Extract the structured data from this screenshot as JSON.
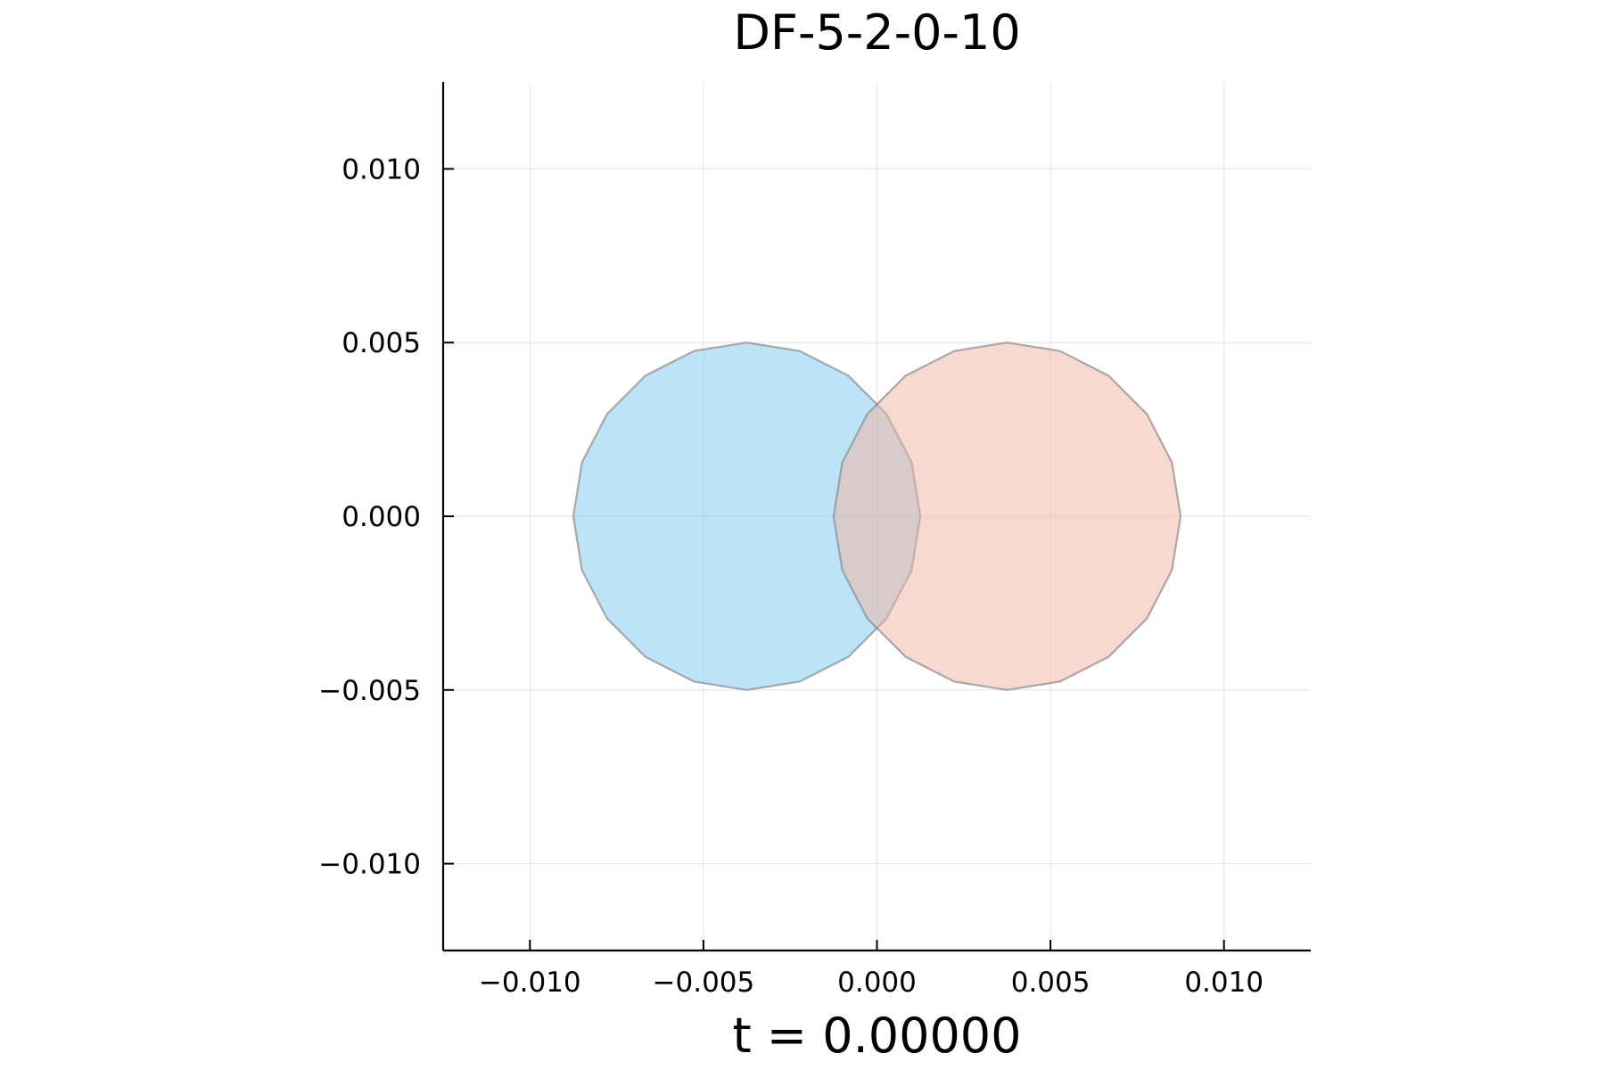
{
  "chart_data": {
    "type": "area",
    "title": "DF-5-2-0-10",
    "xlabel": "t = 0.00000",
    "ylabel": "",
    "xlim": [
      -0.0125,
      0.0125
    ],
    "ylim": [
      -0.0125,
      0.0125
    ],
    "x_ticks": [
      -0.01,
      -0.005,
      0.0,
      0.005,
      0.01
    ],
    "y_ticks": [
      -0.01,
      -0.005,
      0.0,
      0.005,
      0.01
    ],
    "x_tick_labels": [
      "−0.010",
      "−0.005",
      "0.000",
      "0.005",
      "0.010"
    ],
    "y_tick_labels": [
      "−0.010",
      "−0.005",
      "0.000",
      "0.005",
      "0.010"
    ],
    "grid": true,
    "legend": "none",
    "series": [
      {
        "fill": "#7cc7f3",
        "stroke": "#8a8a8a",
        "opacity": 0.5,
        "points": [
          [
            -0.00875,
            0.0
          ],
          [
            -0.0085,
            0.00155
          ],
          [
            -0.00778,
            0.00294
          ],
          [
            -0.00667,
            0.00405
          ],
          [
            -0.00527,
            0.00476
          ],
          [
            -0.00375,
            0.005
          ],
          [
            -0.00223,
            0.00476
          ],
          [
            -0.00083,
            0.00405
          ],
          [
            0.00028,
            0.00294
          ],
          [
            0.001,
            0.00155
          ],
          [
            0.00125,
            0.0
          ],
          [
            0.001,
            -0.00155
          ],
          [
            0.00028,
            -0.00294
          ],
          [
            -0.00083,
            -0.00405
          ],
          [
            -0.00223,
            -0.00476
          ],
          [
            -0.00375,
            -0.005
          ],
          [
            -0.00527,
            -0.00476
          ],
          [
            -0.00667,
            -0.00405
          ],
          [
            -0.00778,
            -0.00294
          ],
          [
            -0.0085,
            -0.00155
          ]
        ]
      },
      {
        "fill": "#f1b3a0",
        "stroke": "#8a8a8a",
        "opacity": 0.5,
        "points": [
          [
            -0.00125,
            0.0
          ],
          [
            -0.001,
            0.00155
          ],
          [
            -0.00028,
            0.00294
          ],
          [
            0.00083,
            0.00405
          ],
          [
            0.00223,
            0.00476
          ],
          [
            0.00375,
            0.005
          ],
          [
            0.00527,
            0.00476
          ],
          [
            0.00667,
            0.00405
          ],
          [
            0.00778,
            0.00294
          ],
          [
            0.0085,
            0.00155
          ],
          [
            0.00875,
            0.0
          ],
          [
            0.0085,
            -0.00155
          ],
          [
            0.00778,
            -0.00294
          ],
          [
            0.00667,
            -0.00405
          ],
          [
            0.00527,
            -0.00476
          ],
          [
            0.00375,
            -0.005
          ],
          [
            0.00223,
            -0.00476
          ],
          [
            0.00083,
            -0.00405
          ],
          [
            -0.00028,
            -0.00294
          ],
          [
            -0.001,
            -0.00155
          ]
        ]
      }
    ]
  }
}
